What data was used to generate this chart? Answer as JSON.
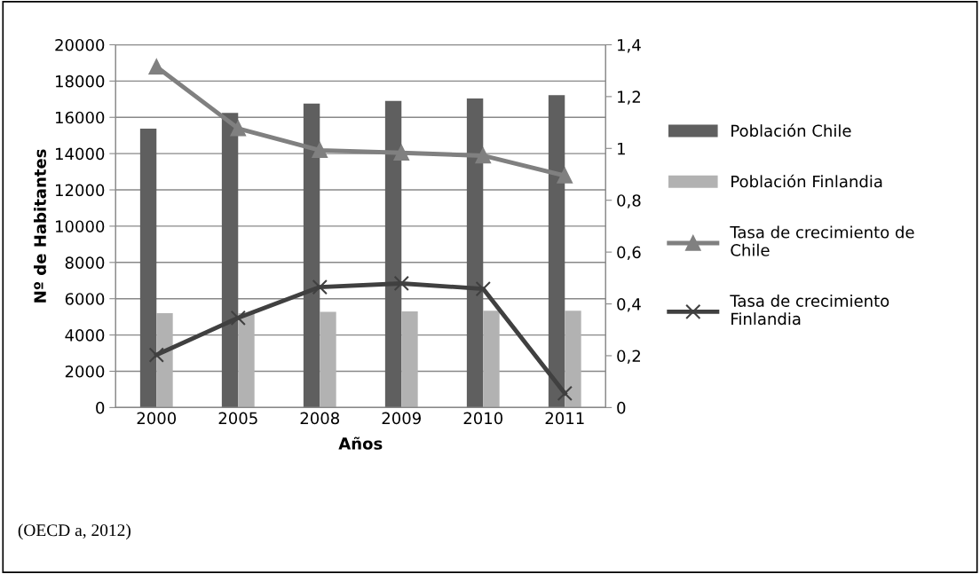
{
  "chart_data": {
    "type": "bar",
    "xlabel": "Años",
    "ylabel": "Nº de Habitantes",
    "categories": [
      "2000",
      "2005",
      "2008",
      "2009",
      "2010",
      "2011"
    ],
    "series": [
      {
        "name": "Población Chile",
        "color": "#5f5f5f",
        "values": [
          15380,
          16240,
          16760,
          16900,
          17040,
          17220
        ]
      },
      {
        "name": "Población Finlandia",
        "color": "#b2b2b2",
        "values": [
          5200,
          5200,
          5280,
          5300,
          5340,
          5340
        ]
      },
      {
        "name": "Tasa de crecimiento de Chile",
        "type": "line",
        "axis": "y2",
        "marker": "triangle",
        "color": "#808080",
        "values": [
          1.315,
          1.077,
          0.993,
          0.983,
          0.972,
          0.895
        ]
      },
      {
        "name": "Tasa de crecimiento Finlandia",
        "type": "line",
        "axis": "y2",
        "marker": "cross",
        "color": "#404040",
        "values": [
          0.203,
          0.346,
          0.465,
          0.479,
          0.458,
          0.055
        ]
      }
    ],
    "ylim": [
      0,
      20000
    ],
    "yticks": [
      0,
      2000,
      4000,
      6000,
      8000,
      10000,
      12000,
      14000,
      16000,
      18000,
      20000
    ],
    "y2lim": [
      0,
      1.4
    ],
    "y2ticks": [
      0,
      {
        "value": 0.2,
        "label": "0,2"
      },
      {
        "value": 0.4,
        "label": "0,4"
      },
      {
        "value": 0.6,
        "label": "0,6"
      },
      {
        "value": 0.8,
        "label": "0,8"
      },
      1,
      {
        "value": 1.2,
        "label": "1,2"
      },
      {
        "value": 1.4,
        "label": "1,4"
      }
    ],
    "grid": "y",
    "legend": "right",
    "annotations": [
      "(OECD a, 2012)"
    ]
  }
}
